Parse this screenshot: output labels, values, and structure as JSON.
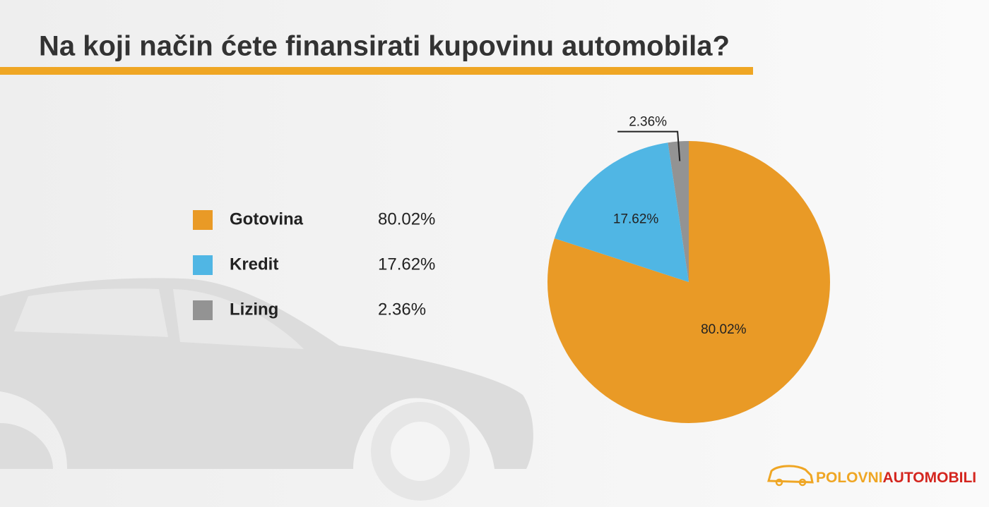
{
  "chart_data": {
    "type": "pie",
    "title": "Na koji način ćete finansirati kupovinu automobila?",
    "categories": [
      "Gotovina",
      "Kredit",
      "Lizing"
    ],
    "values": [
      80.02,
      17.62,
      2.36
    ],
    "value_labels": [
      "80.02%",
      "17.62%",
      "2.36%"
    ],
    "colors": [
      "#e99a26",
      "#50b6e4",
      "#939393"
    ]
  },
  "logo": {
    "part1": "POLOVNI",
    "part2": "AUTOMOBILI"
  }
}
